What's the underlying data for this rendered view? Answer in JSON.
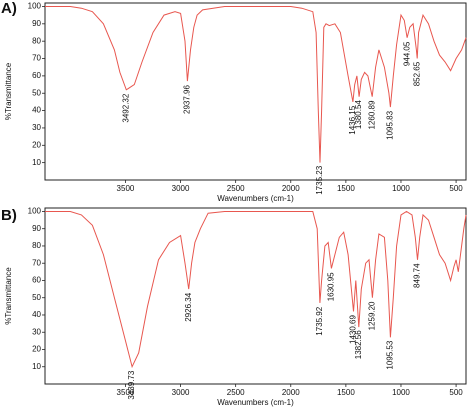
{
  "chart_data": [
    {
      "type": "line",
      "panel_label": "A)",
      "x_label": "Wavenumbers (cm-1)",
      "y_label": "%Transmittance",
      "color": "#e8574f",
      "xlim": [
        4230,
        410
      ],
      "ylim": [
        0,
        102
      ],
      "xticks": [
        3500,
        3000,
        2500,
        2000,
        1500,
        1000,
        500
      ],
      "yticks": [
        10,
        20,
        30,
        40,
        50,
        60,
        70,
        80,
        90,
        100
      ],
      "x": [
        4230,
        4000,
        3900,
        3800,
        3700,
        3600,
        3550,
        3492,
        3420,
        3350,
        3250,
        3150,
        3050,
        3000,
        2960,
        2938,
        2910,
        2880,
        2850,
        2800,
        2600,
        2000,
        1900,
        1800,
        1770,
        1750,
        1735,
        1720,
        1700,
        1680,
        1650,
        1600,
        1550,
        1480,
        1436,
        1420,
        1400,
        1380,
        1360,
        1330,
        1300,
        1261,
        1230,
        1200,
        1150,
        1110,
        1096,
        1070,
        1040,
        1000,
        970,
        944,
        920,
        890,
        860,
        853,
        840,
        800,
        750,
        700,
        650,
        600,
        550,
        500,
        450,
        410
      ],
      "values": [
        100,
        100,
        99,
        97,
        90,
        75,
        62,
        52,
        55,
        68,
        85,
        95,
        97,
        96,
        80,
        57,
        75,
        88,
        95,
        98,
        100,
        100,
        99,
        97,
        85,
        40,
        10,
        40,
        88,
        90,
        89,
        90,
        85,
        60,
        45,
        55,
        60,
        48,
        58,
        62,
        60,
        48,
        65,
        75,
        65,
        50,
        42,
        60,
        78,
        95,
        92,
        82,
        88,
        90,
        75,
        70,
        85,
        95,
        90,
        80,
        72,
        68,
        63,
        70,
        75,
        82
      ],
      "peak_labels": [
        3492.32,
        2937.96,
        1735.23,
        1436.15,
        1380.54,
        1260.89,
        1095.83,
        944.05,
        852.65
      ]
    },
    {
      "type": "line",
      "panel_label": "B)",
      "x_label": "Wavenumbers (cm-1)",
      "y_label": "%Transmittance",
      "color": "#e8574f",
      "xlim": [
        4230,
        410
      ],
      "ylim": [
        0,
        102
      ],
      "xticks": [
        3500,
        3000,
        2500,
        2000,
        1500,
        1000,
        500
      ],
      "yticks": [
        10,
        20,
        30,
        40,
        50,
        60,
        70,
        80,
        90,
        100
      ],
      "x": [
        4230,
        4000,
        3900,
        3800,
        3700,
        3600,
        3500,
        3440,
        3380,
        3300,
        3200,
        3100,
        3000,
        2960,
        2926,
        2900,
        2870,
        2820,
        2750,
        2600,
        1800,
        1760,
        1736,
        1720,
        1690,
        1660,
        1631,
        1600,
        1560,
        1520,
        1480,
        1431,
        1410,
        1383,
        1360,
        1320,
        1290,
        1259,
        1230,
        1200,
        1150,
        1120,
        1096,
        1070,
        1040,
        1000,
        950,
        900,
        870,
        850,
        830,
        800,
        750,
        700,
        650,
        600,
        550,
        520,
        500,
        480,
        450,
        430,
        410
      ],
      "values": [
        100,
        100,
        98,
        92,
        75,
        50,
        25,
        10,
        18,
        45,
        72,
        82,
        86,
        70,
        55,
        70,
        82,
        90,
        99,
        100,
        100,
        90,
        47,
        60,
        80,
        82,
        67,
        75,
        85,
        88,
        75,
        42,
        60,
        33,
        55,
        70,
        72,
        50,
        72,
        87,
        85,
        60,
        27,
        50,
        80,
        98,
        100,
        98,
        85,
        72,
        85,
        98,
        95,
        85,
        75,
        70,
        60,
        68,
        72,
        65,
        80,
        90,
        98
      ],
      "peak_labels": [
        3439.73,
        2926.34,
        1735.92,
        1630.95,
        1430.69,
        1382.56,
        {
          "value": 1259.2,
          "label": "1259.20"
        },
        1095.53,
        849.74
      ]
    }
  ]
}
